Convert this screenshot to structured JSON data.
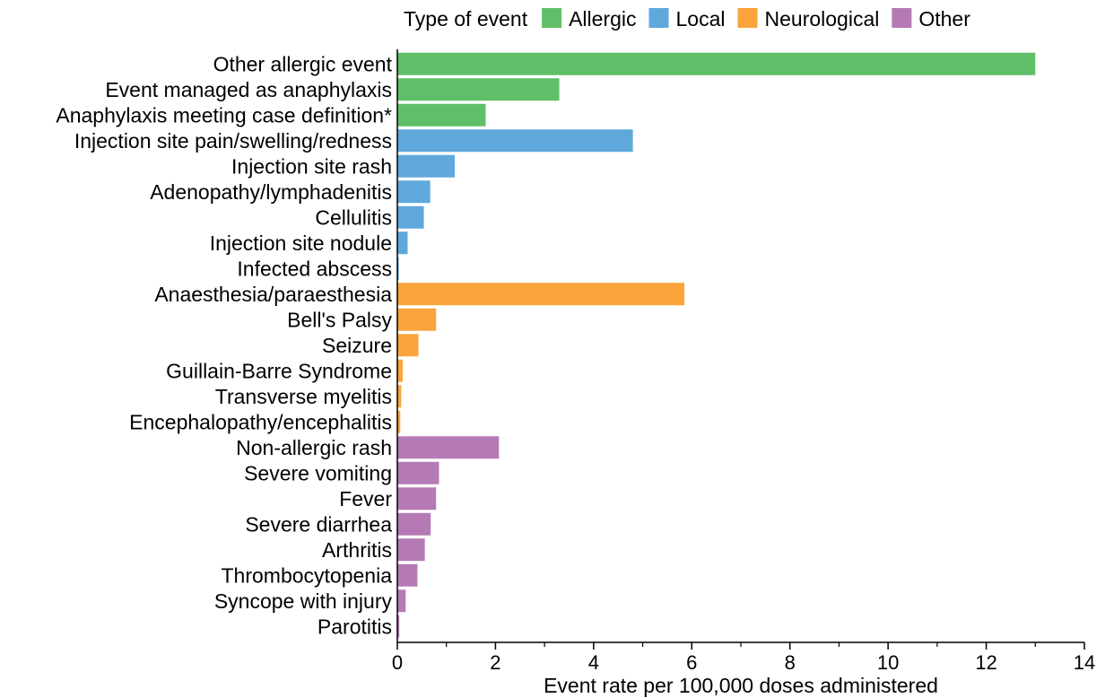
{
  "chart_data": {
    "type": "bar",
    "orientation": "horizontal",
    "xlabel": "Event rate per 100,000 doses administered",
    "ylabel": "",
    "xlim": [
      0,
      14
    ],
    "xticks": [
      0,
      2,
      4,
      6,
      8,
      10,
      12,
      14
    ],
    "xtick_labels": [
      "0",
      "2",
      "4",
      "6",
      "8",
      "10",
      "12",
      "14"
    ],
    "grid": false,
    "legend": {
      "title": "Type of event",
      "placement": "top",
      "entries": [
        {
          "name": "Allergic",
          "color": "#5fbf68"
        },
        {
          "name": "Local",
          "color": "#5fa8dc"
        },
        {
          "name": "Neurological",
          "color": "#fba43c"
        },
        {
          "name": "Other",
          "color": "#b57ab5"
        }
      ]
    },
    "categories": [
      "Other allergic event",
      "Event managed as anaphylaxis",
      "Anaphylaxis meeting case definition*",
      "Injection site pain/swelling/redness",
      "Injection site rash",
      "Adenopathy/lymphadenitis",
      "Cellulitis",
      "Injection site nodule",
      "Infected abscess",
      "Anaesthesia/paraesthesia",
      "Bell's Palsy",
      "Seizure",
      "Guillain-Barre Syndrome",
      "Transverse myelitis",
      "Encephalopathy/encephalitis",
      "Non-allergic rash",
      "Severe vomiting",
      "Fever",
      "Severe diarrhea",
      "Arthritis",
      "Thrombocytopenia",
      "Syncope with injury",
      "Parotitis"
    ],
    "values": [
      13.0,
      3.3,
      1.8,
      4.8,
      1.17,
      0.67,
      0.54,
      0.21,
      0.03,
      5.85,
      0.79,
      0.43,
      0.11,
      0.08,
      0.06,
      2.07,
      0.85,
      0.79,
      0.68,
      0.56,
      0.41,
      0.17,
      0.04
    ],
    "groups": [
      "Allergic",
      "Allergic",
      "Allergic",
      "Local",
      "Local",
      "Local",
      "Local",
      "Local",
      "Local",
      "Neurological",
      "Neurological",
      "Neurological",
      "Neurological",
      "Neurological",
      "Neurological",
      "Other",
      "Other",
      "Other",
      "Other",
      "Other",
      "Other",
      "Other",
      "Other"
    ]
  }
}
